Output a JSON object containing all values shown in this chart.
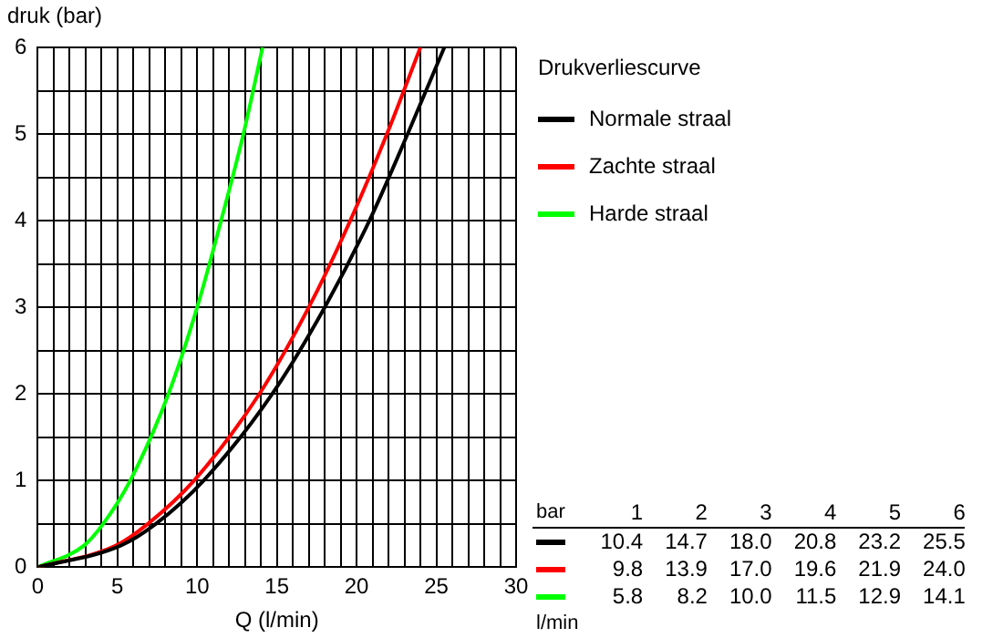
{
  "chart_data": {
    "type": "line",
    "ylabel": "druk (bar)",
    "xlabel": "Q (l/min)",
    "legend_title": "Drukverliescurve",
    "legend": "top right",
    "xlim": [
      0,
      30
    ],
    "ylim": [
      0,
      6
    ],
    "xticks": [
      0,
      {
        "value": 1,
        "label": null
      },
      {
        "value": 2,
        "label": null
      },
      {
        "value": 3,
        "label": null
      },
      {
        "value": 4,
        "label": null
      },
      5,
      {
        "value": 6,
        "label": null
      },
      {
        "value": 7,
        "label": null
      },
      {
        "value": 8,
        "label": null
      },
      {
        "value": 9,
        "label": null
      },
      10,
      {
        "value": 11,
        "label": null
      },
      {
        "value": 12,
        "label": null
      },
      {
        "value": 13,
        "label": null
      },
      {
        "value": 14,
        "label": null
      },
      15,
      {
        "value": 16,
        "label": null
      },
      {
        "value": 17,
        "label": null
      },
      {
        "value": 18,
        "label": null
      },
      {
        "value": 19,
        "label": null
      },
      20,
      {
        "value": 21,
        "label": null
      },
      {
        "value": 22,
        "label": null
      },
      {
        "value": 23,
        "label": null
      },
      {
        "value": 24,
        "label": null
      },
      25,
      {
        "value": 26,
        "label": null
      },
      {
        "value": 27,
        "label": null
      },
      {
        "value": 28,
        "label": null
      },
      {
        "value": 29,
        "label": null
      },
      30
    ],
    "yticks": [
      0,
      {
        "value": 0.5,
        "label": null
      },
      1,
      {
        "value": 1.5,
        "label": null
      },
      2,
      {
        "value": 2.5,
        "label": null
      },
      3,
      {
        "value": 3.5,
        "label": null
      },
      4,
      {
        "value": 4.5,
        "label": null
      },
      5,
      {
        "value": 5.5,
        "label": null
      },
      6
    ],
    "grid": true,
    "marker": "none",
    "annotations": [
      "bar",
      "1",
      "2",
      "3",
      "4",
      "5",
      "6",
      "10.4",
      "14.7",
      "18.0",
      "20.8",
      "23.2",
      "25.5",
      "9.8",
      "13.9",
      "17.0",
      "19.6",
      "21.9",
      "24.0",
      "5.8",
      "8.2",
      "10.0",
      "11.5",
      "12.9",
      "14.1",
      "l/min"
    ],
    "series": [
      {
        "name": "Normale straal",
        "color": "#000000",
        "x": [
          0,
          5.2,
          7.4,
          10.4,
          14.7,
          18.0,
          20.8,
          23.2,
          25.5
        ],
        "values": [
          0,
          0.25,
          0.5,
          1,
          2,
          3,
          4,
          5,
          6
        ]
      },
      {
        "name": "Zachte straal",
        "color": "#ff0000",
        "x": [
          0,
          4.9,
          6.9,
          9.8,
          13.9,
          17.0,
          19.6,
          21.9,
          24.0
        ],
        "values": [
          0,
          0.25,
          0.5,
          1,
          2,
          3,
          4,
          5,
          6
        ]
      },
      {
        "name": "Harde straal",
        "color": "#00ff00",
        "x": [
          0,
          2.9,
          4.1,
          5.8,
          8.2,
          10.0,
          11.5,
          12.9,
          14.1
        ],
        "values": [
          0,
          0.25,
          0.5,
          1,
          2,
          3,
          4,
          5,
          6
        ]
      }
    ]
  }
}
